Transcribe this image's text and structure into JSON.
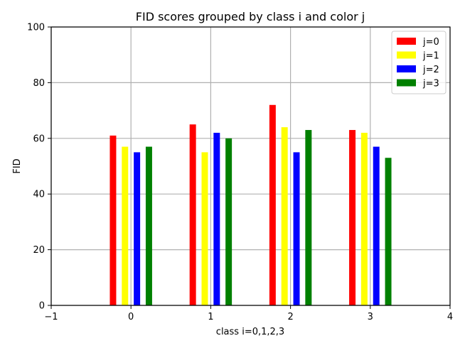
{
  "chart_data": {
    "type": "bar",
    "title": "FID scores grouped by class i and color j",
    "xlabel": "class i=0,1,2,3",
    "ylabel": "FID",
    "xlim": [
      -1,
      4
    ],
    "ylim": [
      0,
      100
    ],
    "x_ticks": [
      "−1",
      "0",
      "1",
      "2",
      "3",
      "4"
    ],
    "y_ticks": [
      "0",
      "20",
      "40",
      "60",
      "80",
      "100"
    ],
    "grid": true,
    "legend_position": "top-right",
    "categories": [
      "0",
      "1",
      "2",
      "3"
    ],
    "series": [
      {
        "name": "j=0",
        "color": "#ff0000",
        "values": [
          61,
          65,
          72,
          63
        ]
      },
      {
        "name": "j=1",
        "color": "#ffff00",
        "values": [
          57,
          55,
          64,
          62
        ]
      },
      {
        "name": "j=2",
        "color": "#0000ff",
        "values": [
          55,
          62,
          55,
          57
        ]
      },
      {
        "name": "j=3",
        "color": "#008000",
        "values": [
          57,
          60,
          63,
          53
        ]
      }
    ]
  }
}
